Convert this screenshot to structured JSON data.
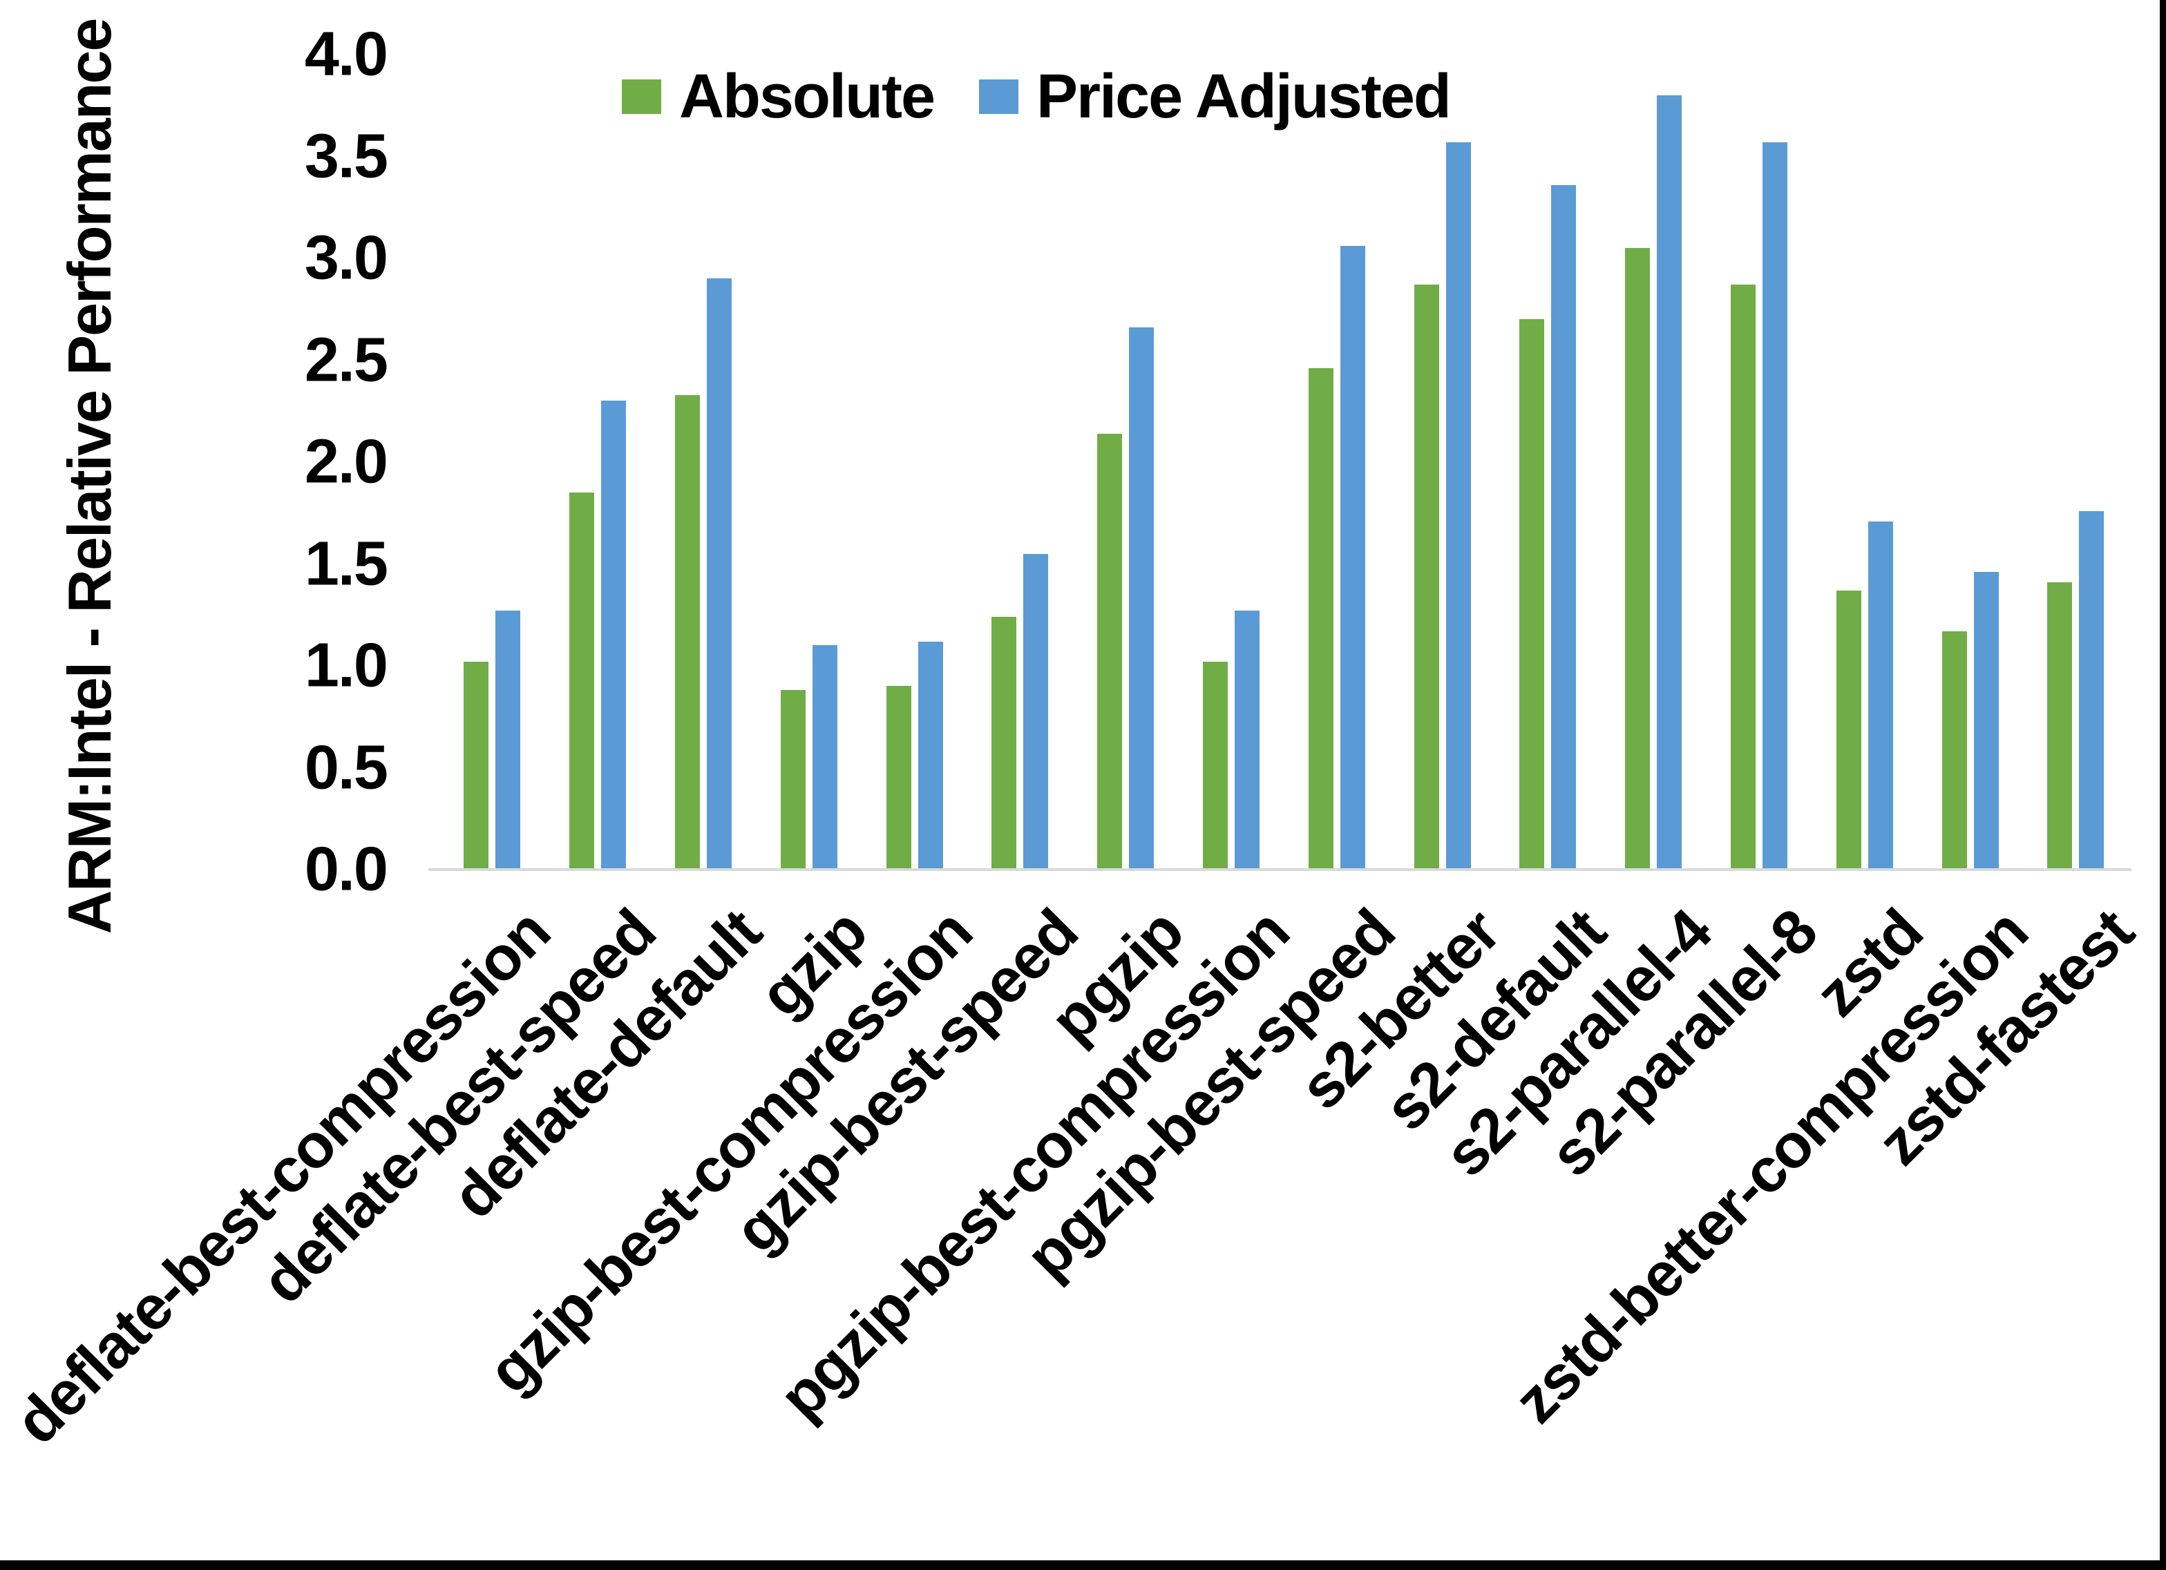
{
  "figure": {
    "background": "#FFFFFF",
    "frame_border_color": "#000000",
    "baseline_color": "#D9D9D9",
    "text_color": "#000000"
  },
  "chart_data": {
    "type": "bar",
    "title": "",
    "xlabel": "",
    "ylabel": "ARM:Intel - Relative Performance",
    "ylim": [
      0.0,
      4.0
    ],
    "ytick_step": 0.5,
    "yticks": [
      "4.0",
      "3.5",
      "3.0",
      "2.5",
      "2.0",
      "1.5",
      "1.0",
      "0.5",
      "0.0"
    ],
    "grid": false,
    "legend_position": "top-center",
    "categories": [
      "deflate-best-compression",
      "deflate-best-speed",
      "deflate-default",
      "gzip",
      "gzip-best-compression",
      "gzip-best-speed",
      "pgzip",
      "pgzip-best-compression",
      "pgzip-best-speed",
      "s2-better",
      "s2-default",
      "s2-parallel-4",
      "s2-parallel-8",
      "zstd",
      "zstd-better-compression",
      "zstd-fastest"
    ],
    "series": [
      {
        "name": "Absolute",
        "color": "#70AD47",
        "values": [
          1.02,
          1.85,
          2.33,
          0.88,
          0.9,
          1.24,
          2.14,
          1.02,
          2.46,
          2.87,
          2.7,
          3.05,
          2.87,
          1.37,
          1.17,
          1.41
        ]
      },
      {
        "name": "Price Adjusted",
        "color": "#5B9BD5",
        "values": [
          1.27,
          2.3,
          2.9,
          1.1,
          1.12,
          1.55,
          2.66,
          1.27,
          3.06,
          3.57,
          3.36,
          3.8,
          3.57,
          1.71,
          1.46,
          1.76
        ]
      }
    ]
  }
}
